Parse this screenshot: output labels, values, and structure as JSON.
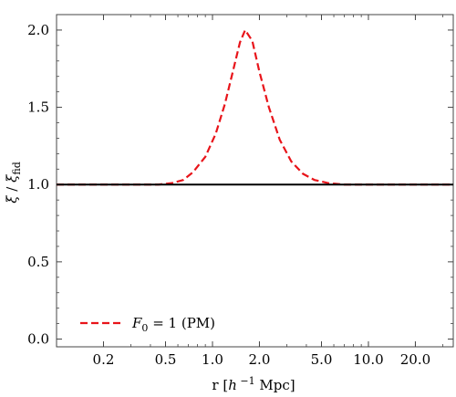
{
  "chart_data": {
    "type": "line",
    "xscale": "log",
    "xlabel_parts": {
      "prefix": "r  [",
      "h": "h",
      "sup": " −1",
      "suffix": " Mpc]"
    },
    "ylabel_parts": {
      "xi": "ξ",
      "slash": " / ",
      "xi2": "ξ",
      "sub": "fid"
    },
    "xlim": [
      0.1,
      35
    ],
    "ylim": [
      -0.05,
      2.1
    ],
    "xticks": [
      {
        "value": 0.2,
        "label": "0.2"
      },
      {
        "value": 0.5,
        "label": "0.5"
      },
      {
        "value": 1.0,
        "label": "1.0"
      },
      {
        "value": 2.0,
        "label": "2.0"
      },
      {
        "value": 5.0,
        "label": "5.0"
      },
      {
        "value": 10.0,
        "label": "10.0"
      },
      {
        "value": 20.0,
        "label": "20.0"
      }
    ],
    "yticks": [
      {
        "value": 0.0,
        "label": "0.0"
      },
      {
        "value": 0.5,
        "label": "0.5"
      },
      {
        "value": 1.0,
        "label": "1.0"
      },
      {
        "value": 1.5,
        "label": "1.5"
      },
      {
        "value": 2.0,
        "label": "2.0"
      }
    ],
    "series": [
      {
        "style": "solid",
        "color": "#000000",
        "x": [
          0.1,
          35
        ],
        "y": [
          1.0,
          1.0
        ]
      },
      {
        "legend_parts": {
          "F": "F",
          "sub": "0",
          "rest": " = 1 (PM)"
        },
        "style": "dashed",
        "color": "#e8141a",
        "x": [
          0.1,
          0.3,
          0.45,
          0.55,
          0.65,
          0.75,
          0.9,
          1.05,
          1.2,
          1.35,
          1.5,
          1.62,
          1.8,
          2.0,
          2.3,
          2.7,
          3.2,
          3.8,
          4.5,
          5.5,
          7.0,
          10.0,
          20.0,
          35.0
        ],
        "y": [
          1.0,
          1.0,
          1.0,
          1.01,
          1.03,
          1.08,
          1.18,
          1.33,
          1.52,
          1.73,
          1.92,
          2.0,
          1.93,
          1.73,
          1.5,
          1.29,
          1.15,
          1.07,
          1.03,
          1.01,
          1.0,
          1.0,
          1.0,
          1.0
        ]
      }
    ],
    "grid": false,
    "legend_position": "bottom-left"
  }
}
